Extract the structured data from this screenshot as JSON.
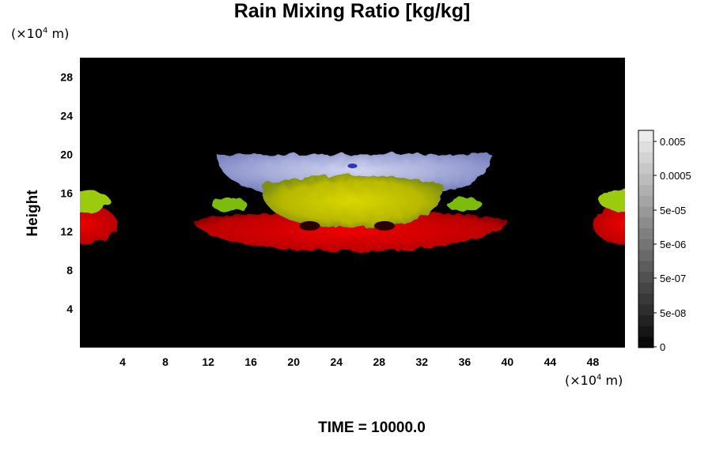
{
  "chart_data": {
    "type": "heatmap",
    "title": "Rain Mixing Ratio [kg/kg]",
    "ylabel": "Height",
    "xlabel": "",
    "x_unit": {
      "prefix": "(×10",
      "exp": "4",
      "suffix": " m)"
    },
    "y_unit": {
      "prefix": "(×10",
      "exp": "4",
      "suffix": " m)"
    },
    "x_ticks": [
      4,
      8,
      12,
      16,
      20,
      24,
      28,
      32,
      36,
      40,
      44,
      48
    ],
    "y_ticks": [
      4,
      8,
      12,
      16,
      20,
      24,
      28
    ],
    "xlim": [
      0,
      51
    ],
    "ylim": [
      0,
      30
    ],
    "footer": "TIME = 10000.0",
    "colorbar": {
      "scale": "log",
      "labels": [
        "0.005",
        "0.0005",
        "5e-05",
        "5e-06",
        "5e-07",
        "5e-08",
        "0"
      ],
      "levels": 20
    },
    "features": [
      {
        "name": "anvil",
        "color": "#a5acd9",
        "x_range": [
          12.8,
          38.5
        ],
        "y_range": [
          15.5,
          20
        ]
      },
      {
        "name": "core",
        "color": "#c8c800",
        "x_range": [
          17,
          34
        ],
        "y_range": [
          12.5,
          17.5
        ]
      },
      {
        "name": "lower-band",
        "color": "#cc0000",
        "x_range": [
          10.5,
          40
        ],
        "y_range": [
          10,
          14
        ]
      },
      {
        "name": "left-edge-cell",
        "color": "#cc0000",
        "x_range": [
          0,
          3.5
        ],
        "y_range": [
          11,
          16.5
        ]
      },
      {
        "name": "right-edge-cell",
        "color": "#cc0000",
        "x_range": [
          48,
          51
        ],
        "y_range": [
          11,
          16.5
        ]
      }
    ]
  }
}
